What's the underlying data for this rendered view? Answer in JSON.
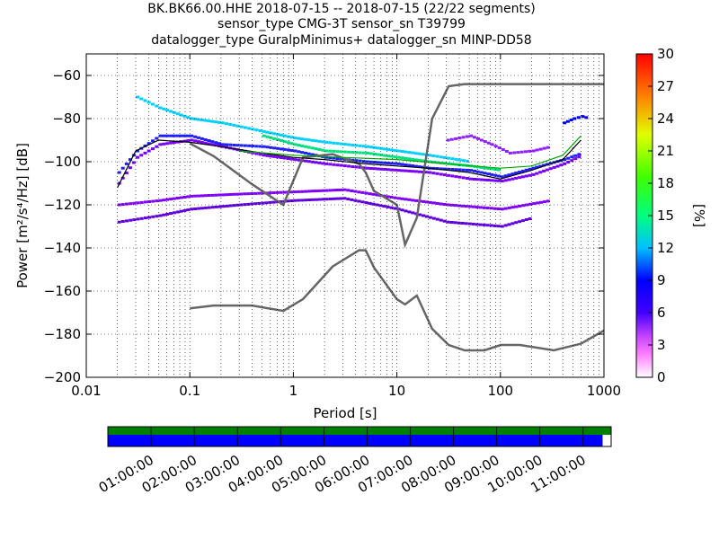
{
  "titles": {
    "line1": "BK.BK66.00.HHE   2018-07-15 -- 2018-07-15  (22/22 segments)",
    "line2": "sensor_type CMG-3T sensor_sn T39799",
    "line3": "datalogger_type GuralpMinimus+ datalogger_sn MINP-DD58"
  },
  "chart_data": [
    {
      "type": "heatmap",
      "title": "",
      "xlabel": "Period [s]",
      "ylabel": "Power [m²/s⁴/Hz] [dB]",
      "xscale": "log",
      "xlim": [
        0.01,
        1000
      ],
      "ylim": [
        -200,
        -50
      ],
      "xtick_labels": [
        "0.01",
        "0.1",
        "1",
        "10",
        "100",
        "1000"
      ],
      "ytick_values": [
        -200,
        -180,
        -160,
        -140,
        -120,
        -100,
        -80,
        -60
      ],
      "grid": true,
      "colorbar": {
        "label": "[%]",
        "range": [
          0,
          30
        ],
        "ticks": [
          0,
          3,
          6,
          9,
          12,
          15,
          18,
          21,
          24,
          27,
          30
        ]
      },
      "noise_models": [
        {
          "name": "high noise model",
          "x": [
            0.1,
            0.17,
            0.4,
            0.8,
            1.24,
            2.4,
            4.3,
            5.0,
            6.0,
            10.0,
            12.0,
            15.6,
            21.9,
            31.6,
            45.0,
            70.0,
            101.0,
            154.0,
            328.0,
            600.0,
            1000.0
          ],
          "y": [
            -91.5,
            -97.4,
            -110.5,
            -120.0,
            -98.0,
            -96.5,
            -101.0,
            -105.0,
            -113.5,
            -120.0,
            -138.5,
            -126.0,
            -80.1,
            -65.0,
            -64.0,
            -64.0,
            -64.0,
            -64.0,
            -64.0,
            -64.0,
            -64.0
          ]
        },
        {
          "name": "low noise model",
          "x": [
            0.1,
            0.17,
            0.4,
            0.8,
            1.24,
            2.4,
            4.3,
            5.0,
            6.0,
            10.0,
            12.0,
            15.6,
            21.9,
            31.6,
            45.0,
            70.0,
            101.0,
            154.0,
            328.0,
            600.0,
            1000.0
          ],
          "y": [
            -168.0,
            -166.7,
            -166.7,
            -169.2,
            -163.7,
            -148.6,
            -141.1,
            -141.1,
            -149.0,
            -163.8,
            -166.2,
            -162.1,
            -177.5,
            -185.0,
            -187.5,
            -187.5,
            -185.0,
            -185.0,
            -187.5,
            -184.4,
            -178.3
          ]
        }
      ],
      "ppsd_traces": [
        {
          "color": "#2020ff",
          "x": [
            0.02,
            0.03,
            0.05,
            0.1,
            0.2,
            0.5,
            1,
            2,
            5,
            10,
            20,
            50,
            100,
            200,
            400,
            600
          ],
          "y": [
            -105,
            -95,
            -88,
            -88,
            -92,
            -93,
            -95,
            -98,
            -100,
            -101,
            -103,
            -104,
            -107,
            -103,
            -99,
            -96
          ]
        },
        {
          "color": "#7a00ff",
          "x": [
            0.02,
            0.03,
            0.05,
            0.1,
            0.2,
            0.5,
            1,
            2,
            5,
            10,
            20,
            50,
            100,
            200,
            400,
            600
          ],
          "y": [
            -110,
            -98,
            -92,
            -90,
            -93,
            -97,
            -99,
            -101,
            -103,
            -104,
            -105,
            -108,
            -109,
            -106,
            -101,
            -97
          ]
        },
        {
          "color": "#00d0ff",
          "x": [
            0.03,
            0.05,
            0.1,
            0.2,
            0.5,
            1,
            2,
            5,
            10,
            20,
            50
          ],
          "y": [
            -70,
            -75,
            -80,
            -82,
            -86,
            -89,
            -91,
            -93,
            -95,
            -97,
            -100
          ]
        },
        {
          "color": "#00e080",
          "x": [
            0.5,
            1,
            2,
            5,
            10,
            20,
            50,
            100
          ],
          "y": [
            -88,
            -92,
            -95,
            -96,
            -98,
            -100,
            -102,
            -104
          ]
        },
        {
          "color": "#8000ff",
          "x": [
            0.02,
            0.05,
            0.1,
            0.3,
            1,
            3,
            10,
            30,
            100,
            300
          ],
          "y": [
            -120,
            -118,
            -116,
            -115,
            -114,
            -113,
            -117,
            -120,
            -122,
            -118
          ]
        },
        {
          "color": "#6000e0",
          "x": [
            0.02,
            0.05,
            0.1,
            0.3,
            1,
            3,
            10,
            30,
            100,
            200
          ],
          "y": [
            -128,
            -125,
            -122,
            -120,
            -118,
            -117,
            -122,
            -128,
            -130,
            -126
          ]
        },
        {
          "color": "#9020ff",
          "x": [
            30,
            50,
            80,
            120,
            200,
            300
          ],
          "y": [
            -90,
            -88,
            -92,
            -96,
            -95,
            -93
          ]
        },
        {
          "color": "#0000ff",
          "x": [
            400,
            500,
            600,
            700
          ],
          "y": [
            -82,
            -80,
            -79,
            -80
          ]
        }
      ],
      "mean_curve": {
        "x": [
          0.02,
          0.03,
          0.05,
          0.1,
          0.2,
          0.5,
          1,
          2,
          5,
          10,
          20,
          50,
          100,
          200,
          400,
          600
        ],
        "y": [
          -112,
          -95,
          -90,
          -91,
          -93,
          -96,
          -98,
          -99,
          -101,
          -102,
          -103,
          -105,
          -108,
          -104,
          -99,
          -90
        ]
      },
      "mode_curve": {
        "x": [
          0.3,
          1,
          3,
          10,
          30,
          100,
          200,
          400,
          600
        ],
        "y": [
          -95,
          -97,
          -98,
          -99,
          -101,
          -103,
          -102,
          -97,
          -88
        ]
      }
    },
    {
      "type": "timeline",
      "title": "",
      "xtick_labels": [
        "01:00:00",
        "02:00:00",
        "03:00:00",
        "04:00:00",
        "05:00:00",
        "06:00:00",
        "07:00:00",
        "08:00:00",
        "09:00:00",
        "10:00:00",
        "11:00:00"
      ],
      "data_coverage_fraction": 1.0,
      "used_coverage_fraction": 0.983,
      "colors": {
        "data": "#008000",
        "used": "#0000ff"
      }
    }
  ]
}
